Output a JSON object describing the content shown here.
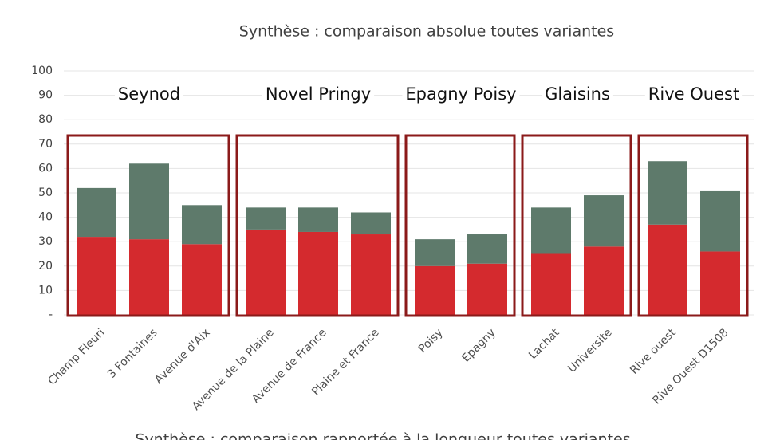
{
  "chart_data": {
    "type": "stacked_bar",
    "title": "Synthèse : comparaison absolue toutes variantes",
    "next_title": "Synthèse : comparaison rapportée à la longueur toutes variantes",
    "groups": [
      {
        "label": "Seynod",
        "categories": [
          "Champ Fleuri",
          "3 Fontaines",
          "Avenue d'Aix"
        ]
      },
      {
        "label": "Novel Pringy",
        "categories": [
          "Avenue de la Plaine",
          "Avenue de France",
          "Plaine et France"
        ]
      },
      {
        "label": "Epagny Poisy",
        "categories": [
          "Poisy",
          "Epagny"
        ]
      },
      {
        "label": "Glaisins",
        "categories": [
          "Lachat",
          "Universite"
        ]
      },
      {
        "label": "Rive Ouest",
        "categories": [
          "Rive ouest",
          "Rive Ouest D1508"
        ]
      }
    ],
    "series": [
      {
        "color": "#d42a2e",
        "values": [
          32,
          31,
          29,
          35,
          34,
          33,
          20,
          21,
          25,
          28,
          37,
          26
        ]
      },
      {
        "color": "#5e7a6b",
        "values": [
          20,
          31,
          16,
          9,
          10,
          9,
          11,
          12,
          19,
          21,
          26,
          25
        ]
      }
    ],
    "group_box_color": "#8b1a1a",
    "ylim": [
      0,
      100
    ],
    "yticks": [
      {
        "value": 0,
        "label": "-"
      },
      10,
      20,
      30,
      40,
      50,
      60,
      70,
      80,
      90,
      100
    ],
    "grid": true
  }
}
